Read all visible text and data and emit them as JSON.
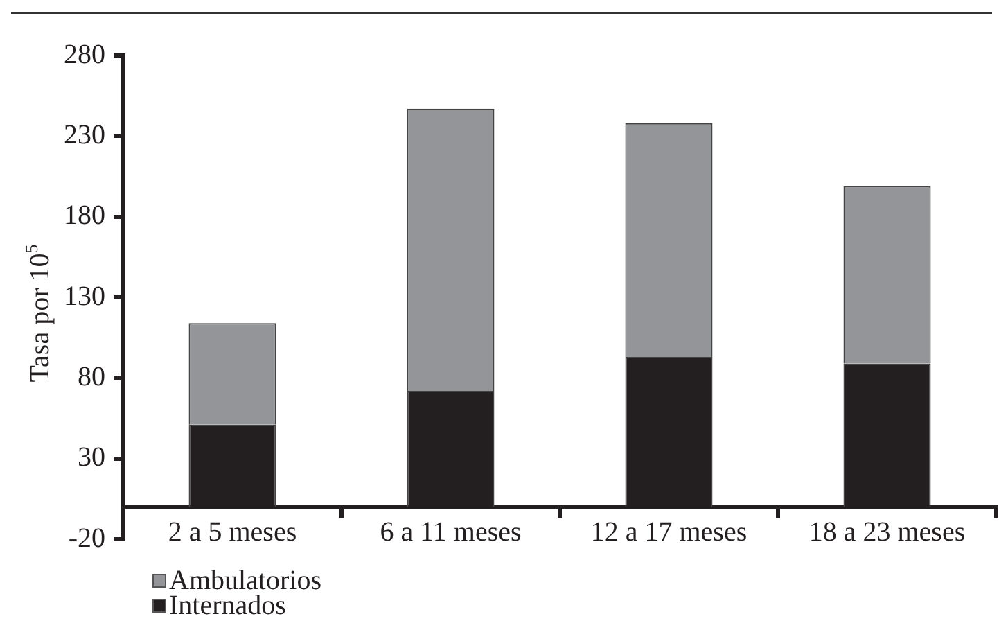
{
  "chart_data": {
    "type": "bar",
    "stacked": true,
    "ylabel": "Tasa por 10$^{5}$",
    "categories": [
      "2 a 5 meses",
      "6 a 11 meses",
      "12 a 17 meses",
      "18 a 23 meses"
    ],
    "series": [
      {
        "name": "Internados",
        "color": "#231f20",
        "values": [
          51,
          72,
          93,
          89
        ]
      },
      {
        "name": "Ambulatorios",
        "color": "#939598",
        "values": [
          63,
          175,
          145,
          110
        ]
      }
    ],
    "ylim": [
      -20,
      280
    ],
    "yticks": [
      -20,
      30,
      80,
      130,
      180,
      230,
      280
    ],
    "grid": false,
    "legend": "bottom left"
  }
}
